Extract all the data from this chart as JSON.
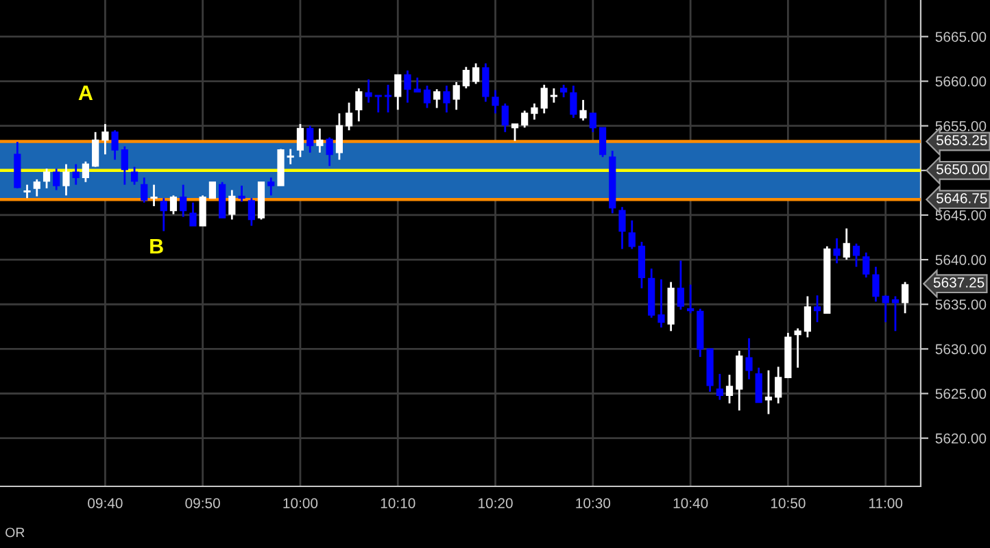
{
  "chart_data": {
    "type": "candlestick",
    "x": [
      9.5167,
      9.5333,
      9.55,
      9.5667,
      9.5833,
      9.6,
      9.6167,
      9.6333,
      9.65,
      9.6667,
      9.6833,
      9.7,
      9.7167,
      9.7333,
      9.75,
      9.7667,
      9.7833,
      9.8,
      9.8167,
      9.8333,
      9.85,
      9.8667,
      9.8833,
      9.9,
      9.9167,
      9.9333,
      9.95,
      9.9667,
      9.9833,
      10.0,
      10.0167,
      10.0333,
      10.05,
      10.0667,
      10.0833,
      10.1,
      10.1167,
      10.1333,
      10.15,
      10.1667,
      10.1833,
      10.2,
      10.2167,
      10.2333,
      10.25,
      10.2667,
      10.2833,
      10.3,
      10.3167,
      10.3333,
      10.35,
      10.3667,
      10.3833,
      10.4,
      10.4167,
      10.4333,
      10.45,
      10.4667,
      10.4833,
      10.5,
      10.5167,
      10.5333,
      10.55,
      10.5667,
      10.5833,
      10.6,
      10.6167,
      10.6333,
      10.65,
      10.6667,
      10.6833,
      10.7,
      10.7167,
      10.7333,
      10.75,
      10.7667,
      10.7833,
      10.8,
      10.8167,
      10.8333,
      10.85,
      10.8667,
      10.8833,
      10.9,
      10.9167,
      10.9333,
      10.95,
      10.9667,
      10.9833,
      11.0,
      11.0167,
      11.0333
    ],
    "ohlc": [
      [
        5651.8,
        5653.2,
        5648.0,
        5648.1
      ],
      [
        5647.6,
        5648.4,
        5646.9,
        5647.7
      ],
      [
        5648.0,
        5649.0,
        5647.1,
        5648.7
      ],
      [
        5648.8,
        5650.2,
        5648.0,
        5649.8
      ],
      [
        5649.8,
        5650.2,
        5647.8,
        5648.3
      ],
      [
        5648.3,
        5650.7,
        5647.2,
        5649.8
      ],
      [
        5649.8,
        5650.7,
        5648.4,
        5649.2
      ],
      [
        5649.2,
        5651.0,
        5648.7,
        5650.7
      ],
      [
        5650.5,
        5654.3,
        5650.4,
        5653.4
      ],
      [
        5653.4,
        5655.2,
        5651.8,
        5654.3
      ],
      [
        5654.3,
        5654.5,
        5651.2,
        5652.3
      ],
      [
        5652.3,
        5652.7,
        5648.4,
        5650.1
      ],
      [
        5649.8,
        5650.4,
        5648.4,
        5648.8
      ],
      [
        5648.4,
        5649.2,
        5646.4,
        5646.7
      ],
      [
        5646.9,
        5648.4,
        5646.0,
        5647.0
      ],
      [
        5646.5,
        5646.9,
        5643.2,
        5645.5
      ],
      [
        5645.5,
        5647.2,
        5645.1,
        5647.0
      ],
      [
        5647.0,
        5648.4,
        5644.8,
        5645.5
      ],
      [
        5645.2,
        5646.4,
        5643.8,
        5643.8
      ],
      [
        5643.8,
        5647.2,
        5643.8,
        5647.0
      ],
      [
        5646.9,
        5648.7,
        5646.9,
        5648.7
      ],
      [
        5648.4,
        5648.7,
        5644.7,
        5644.7
      ],
      [
        5645.1,
        5647.8,
        5644.5,
        5647.1
      ],
      [
        5647.1,
        5648.3,
        5646.5,
        5646.9
      ],
      [
        5646.6,
        5646.9,
        5643.8,
        5644.5
      ],
      [
        5644.7,
        5648.7,
        5644.5,
        5648.7
      ],
      [
        5648.7,
        5649.2,
        5647.2,
        5648.3
      ],
      [
        5648.3,
        5652.4,
        5648.3,
        5652.3
      ],
      [
        5651.5,
        5652.4,
        5650.7,
        5651.6
      ],
      [
        5652.3,
        5655.2,
        5651.5,
        5654.7
      ],
      [
        5654.7,
        5655.0,
        5652.0,
        5652.8
      ],
      [
        5652.8,
        5654.7,
        5652.0,
        5653.4
      ],
      [
        5653.5,
        5653.7,
        5650.5,
        5651.8
      ],
      [
        5652.0,
        5656.4,
        5651.2,
        5655.0
      ],
      [
        5655.0,
        5657.6,
        5654.5,
        5656.4
      ],
      [
        5656.8,
        5659.2,
        5655.5,
        5658.8
      ],
      [
        5658.7,
        5660.2,
        5657.6,
        5658.3
      ],
      [
        5658.4,
        5658.4,
        5656.5,
        5658.3
      ],
      [
        5658.4,
        5659.6,
        5656.5,
        5658.3
      ],
      [
        5658.3,
        5660.7,
        5656.8,
        5660.7
      ],
      [
        5660.7,
        5661.2,
        5657.6,
        5659.1
      ],
      [
        5659.1,
        5660.4,
        5658.8,
        5658.8
      ],
      [
        5659.0,
        5659.5,
        5657.0,
        5657.6
      ],
      [
        5658.0,
        5659.1,
        5657.0,
        5658.8
      ],
      [
        5658.8,
        5659.5,
        5656.5,
        5657.6
      ],
      [
        5658.0,
        5659.9,
        5656.8,
        5659.5
      ],
      [
        5659.5,
        5661.6,
        5659.2,
        5661.2
      ],
      [
        5660.0,
        5662.0,
        5659.7,
        5661.5
      ],
      [
        5661.5,
        5662.0,
        5657.7,
        5658.3
      ],
      [
        5658.2,
        5659.0,
        5656.4,
        5657.3
      ],
      [
        5657.2,
        5657.5,
        5654.3,
        5655.1
      ],
      [
        5654.8,
        5655.2,
        5653.3,
        5655.2
      ],
      [
        5655.1,
        5656.7,
        5654.8,
        5656.4
      ],
      [
        5656.4,
        5657.5,
        5655.7,
        5657.0
      ],
      [
        5657.0,
        5659.6,
        5656.4,
        5659.2
      ],
      [
        5658.3,
        5659.2,
        5657.6,
        5658.4
      ],
      [
        5659.2,
        5659.6,
        5658.2,
        5658.8
      ],
      [
        5658.7,
        5659.5,
        5655.9,
        5656.3
      ],
      [
        5655.9,
        5657.9,
        5655.6,
        5656.7
      ],
      [
        5656.4,
        5656.4,
        5654.3,
        5654.8
      ],
      [
        5654.8,
        5654.8,
        5651.5,
        5651.8
      ],
      [
        5651.5,
        5652.2,
        5645.2,
        5645.8
      ],
      [
        5645.5,
        5645.9,
        5641.2,
        5643.2
      ],
      [
        5643.0,
        5644.4,
        5641.2,
        5641.5
      ],
      [
        5641.5,
        5642.0,
        5636.8,
        5638.0
      ],
      [
        5637.9,
        5639.0,
        5633.5,
        5633.8
      ],
      [
        5633.8,
        5637.8,
        5632.4,
        5633.0
      ],
      [
        5632.8,
        5637.5,
        5632.0,
        5636.8
      ],
      [
        5636.8,
        5639.9,
        5634.4,
        5634.8
      ],
      [
        5634.5,
        5637.2,
        5634.0,
        5634.3
      ],
      [
        5634.2,
        5634.5,
        5629.1,
        5630.0
      ],
      [
        5630.0,
        5630.0,
        5625.2,
        5625.9
      ],
      [
        5625.5,
        5627.2,
        5624.3,
        5624.8
      ],
      [
        5624.8,
        5627.1,
        5623.9,
        5625.8
      ],
      [
        5625.5,
        5629.8,
        5623.1,
        5629.2
      ],
      [
        5629.0,
        5631.2,
        5626.6,
        5627.6
      ],
      [
        5627.2,
        5627.9,
        5624.0,
        5624.0
      ],
      [
        5624.3,
        5627.6,
        5622.7,
        5624.6
      ],
      [
        5624.6,
        5628.0,
        5623.9,
        5626.8
      ],
      [
        5626.8,
        5631.8,
        5626.8,
        5631.3
      ],
      [
        5631.6,
        5632.3,
        5627.9,
        5632.0
      ],
      [
        5632.0,
        5635.9,
        5631.3,
        5634.7
      ],
      [
        5634.7,
        5636.0,
        5633.0,
        5634.3
      ],
      [
        5634.0,
        5641.5,
        5634.0,
        5641.2
      ],
      [
        5641.2,
        5642.4,
        5639.6,
        5640.5
      ],
      [
        5640.3,
        5643.5,
        5640.0,
        5641.8
      ],
      [
        5641.5,
        5641.8,
        5639.2,
        5640.5
      ],
      [
        5640.3,
        5640.8,
        5638.0,
        5638.4
      ],
      [
        5638.3,
        5639.2,
        5635.3,
        5635.9
      ],
      [
        5635.9,
        5636.0,
        5633.0,
        5635.2
      ],
      [
        5635.5,
        5635.9,
        5632.0,
        5635.2
      ],
      [
        5635.2,
        5637.5,
        5634.0,
        5637.2
      ]
    ],
    "colors": [
      "#0000ff",
      "#ffffff",
      "#ffffff",
      "#ffffff",
      "#0000ff",
      "#ffffff",
      "#0000ff",
      "#ffffff",
      "#ffffff",
      "#ffffff",
      "#0000ff",
      "#0000ff",
      "#0000ff",
      "#0000ff",
      "#ffffff",
      "#0000ff",
      "#ffffff",
      "#0000ff",
      "#0000ff",
      "#ffffff",
      "#ffffff",
      "#0000ff",
      "#ffffff",
      "#0000ff",
      "#0000ff",
      "#ffffff",
      "#0000ff",
      "#ffffff",
      "#ffffff",
      "#ffffff",
      "#0000ff",
      "#ffffff",
      "#0000ff",
      "#ffffff",
      "#ffffff",
      "#ffffff",
      "#0000ff",
      "#0000ff",
      "#0000ff",
      "#ffffff",
      "#0000ff",
      "#0000ff",
      "#0000ff",
      "#ffffff",
      "#0000ff",
      "#ffffff",
      "#ffffff",
      "#ffffff",
      "#0000ff",
      "#0000ff",
      "#0000ff",
      "#ffffff",
      "#ffffff",
      "#ffffff",
      "#ffffff",
      "#ffffff",
      "#0000ff",
      "#0000ff",
      "#ffffff",
      "#0000ff",
      "#0000ff",
      "#0000ff",
      "#0000ff",
      "#0000ff",
      "#0000ff",
      "#0000ff",
      "#0000ff",
      "#ffffff",
      "#0000ff",
      "#0000ff",
      "#0000ff",
      "#0000ff",
      "#0000ff",
      "#ffffff",
      "#ffffff",
      "#0000ff",
      "#0000ff",
      "#ffffff",
      "#ffffff",
      "#ffffff",
      "#ffffff",
      "#ffffff",
      "#0000ff",
      "#ffffff",
      "#0000ff",
      "#ffffff",
      "#0000ff",
      "#0000ff",
      "#0000ff",
      "#0000ff",
      "#0000ff",
      "#ffffff"
    ],
    "xlim": [
      9.487,
      11.06
    ],
    "xticks": [
      {
        "value": 9.6667,
        "label": "09:40"
      },
      {
        "value": 9.8333,
        "label": "09:50"
      },
      {
        "value": 10.0,
        "label": "10:00"
      },
      {
        "value": 10.1667,
        "label": "10:10"
      },
      {
        "value": 10.3333,
        "label": "10:20"
      },
      {
        "value": 10.5,
        "label": "10:30"
      },
      {
        "value": 10.6667,
        "label": "10:40"
      },
      {
        "value": 10.8333,
        "label": "10:50"
      },
      {
        "value": 11.0,
        "label": "11:00"
      }
    ],
    "ylim": [
      5614.6,
      5669.1
    ],
    "yticks": [
      {
        "value": 5620,
        "label": "5620.00"
      },
      {
        "value": 5625,
        "label": "5625.00"
      },
      {
        "value": 5630,
        "label": "5630.00"
      },
      {
        "value": 5635,
        "label": "5635.00"
      },
      {
        "value": 5640,
        "label": "5640.00"
      },
      {
        "value": 5645,
        "label": "5645.00"
      },
      {
        "value": 5650,
        "label": "5650.00"
      },
      {
        "value": 5655,
        "label": "5655.00"
      },
      {
        "value": 5660,
        "label": "5660.00"
      },
      {
        "value": 5665,
        "label": "5665.00"
      }
    ],
    "grid": true,
    "bands": [
      {
        "axis": "y",
        "from": 5646.75,
        "to": 5653.25,
        "color": "#1a66b3"
      }
    ],
    "ref_lines": [
      {
        "axis": "y",
        "value": 5653.25,
        "label": "5653.25",
        "color": "#ff8c00",
        "line_style": "solid"
      },
      {
        "axis": "y",
        "value": 5650.0,
        "label": "5650.00",
        "color": "#ffff00",
        "line_style": "solid"
      },
      {
        "axis": "y",
        "value": 5646.75,
        "label": "5646.75",
        "color": "#ff8c00",
        "line_style": "solid"
      }
    ],
    "annotations": [
      "A",
      "B",
      "5637.25",
      "OR"
    ]
  }
}
